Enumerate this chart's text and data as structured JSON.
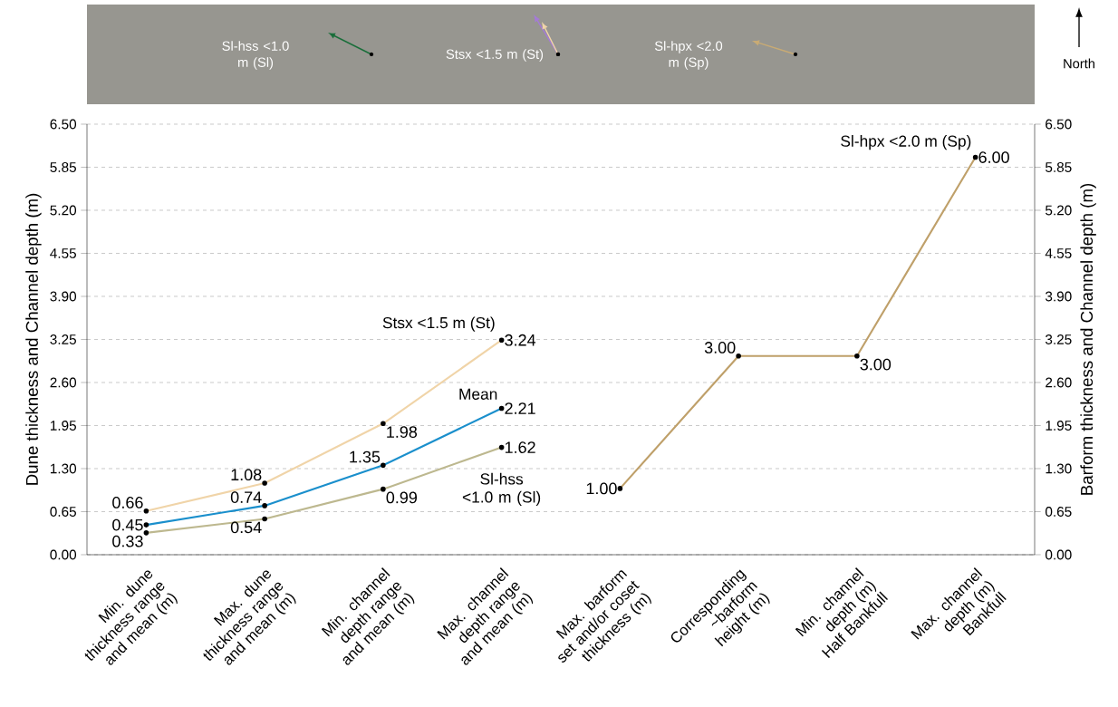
{
  "chart_data": {
    "type": "line",
    "categories": [
      "Min. dune thickness range and mean (m)",
      "Max. dune thickness range and mean (m)",
      "Min. channel depth range and mean (m)",
      "Max. channel depth range and mean (m)",
      "Max. barform set and/or coset thickness (m)",
      "Corresponding ~barform height (m)",
      "Min. channel depth (m) Half Bankfull",
      "Max. channel depth (m) Bankfull"
    ],
    "ylabel": "Dune thickness and Channel depth (m)",
    "y2label": "Barform thickness and Channel depth (m)",
    "ylim": [
      0,
      6.5
    ],
    "yticks": [
      {
        "value": 0,
        "label": "0.00"
      },
      {
        "value": 0.65,
        "label": "0.65"
      },
      {
        "value": 1.3,
        "label": "1.30"
      },
      {
        "value": 1.95,
        "label": "1.95"
      },
      {
        "value": 2.6,
        "label": "2.60"
      },
      {
        "value": 3.25,
        "label": "3.25"
      },
      {
        "value": 3.9,
        "label": "3.90"
      },
      {
        "value": 4.55,
        "label": "4.55"
      },
      {
        "value": 5.2,
        "label": "5.20"
      },
      {
        "value": 5.85,
        "label": "5.85"
      },
      {
        "value": 6.5,
        "label": "6.50"
      }
    ],
    "y2lim": [
      0,
      6.5
    ],
    "y2ticks": [
      {
        "value": 0,
        "label": "0.00"
      },
      {
        "value": 0.65,
        "label": "0.65"
      },
      {
        "value": 1.3,
        "label": "1.30"
      },
      {
        "value": 1.95,
        "label": "1.95"
      },
      {
        "value": 2.6,
        "label": "2.60"
      },
      {
        "value": 3.25,
        "label": "3.25"
      },
      {
        "value": 3.9,
        "label": "3.90"
      },
      {
        "value": 4.55,
        "label": "4.55"
      },
      {
        "value": 5.2,
        "label": "5.20"
      },
      {
        "value": 5.85,
        "label": "5.85"
      },
      {
        "value": 6.5,
        "label": "6.50"
      }
    ],
    "grid": "y",
    "marker": "circle",
    "line_style": "solid",
    "series": [
      {
        "name": "Stsx <1.5 m (St)",
        "color": "#f0d4a8",
        "values": [
          0.66,
          1.08,
          1.98,
          3.24,
          null,
          null,
          null,
          null
        ],
        "value_labels": [
          "0.66",
          "1.08",
          "1.98",
          "3.24",
          null,
          null,
          null,
          null
        ]
      },
      {
        "name": "Mean",
        "color": "#1a8fcc",
        "values": [
          0.45,
          0.74,
          1.35,
          2.21,
          null,
          null,
          null,
          null
        ],
        "value_labels": [
          "0.45",
          "0.74",
          "1.35",
          "2.21",
          null,
          null,
          null,
          null
        ]
      },
      {
        "name": "Sl-hss <1.0 m (Sl)",
        "color": "#bdb88f",
        "values": [
          0.33,
          0.54,
          0.99,
          1.62,
          null,
          null,
          null,
          null
        ],
        "value_labels": [
          "0.33",
          "0.54",
          "0.99",
          "1.62",
          null,
          null,
          null,
          null
        ]
      },
      {
        "name": "Sl-hpx <2.0 m (Sp)",
        "color": "#bfa06a",
        "axis": "y2",
        "values": [
          null,
          null,
          null,
          null,
          1.0,
          3.0,
          3.0,
          6.0
        ],
        "value_labels": [
          null,
          null,
          null,
          null,
          "1.00",
          "3.00",
          "3.00",
          "6.00"
        ]
      }
    ],
    "annotations": [
      "Sl-hss <1.0 m (Sl)",
      "Stsx <1.5 m (St)",
      "Sl-hpx <2.0 m (Sp)",
      "North"
    ]
  }
}
